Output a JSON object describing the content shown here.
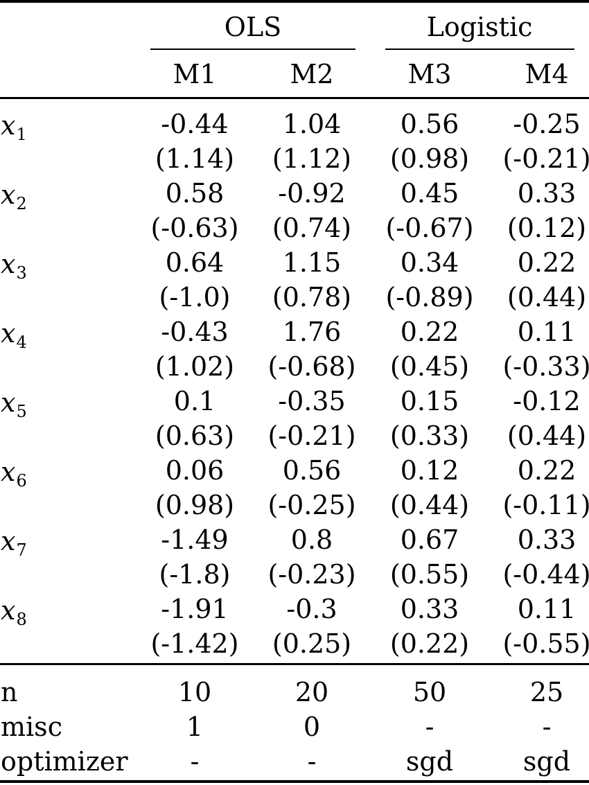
{
  "header": {
    "groups": [
      {
        "label": "OLS"
      },
      {
        "label": "Logistic"
      }
    ],
    "models": [
      "M1",
      "M2",
      "M3",
      "M4"
    ]
  },
  "rows": [
    {
      "base": "x",
      "sub": "1",
      "coefs": [
        "-0.44",
        "1.04",
        "0.56",
        "-0.25"
      ],
      "ses": [
        "(1.14)",
        "(1.12)",
        "(0.98)",
        "(-0.21)"
      ]
    },
    {
      "base": "x",
      "sub": "2",
      "coefs": [
        "0.58",
        "-0.92",
        "0.45",
        "0.33"
      ],
      "ses": [
        "(-0.63)",
        "(0.74)",
        "(-0.67)",
        "(0.12)"
      ]
    },
    {
      "base": "x",
      "sub": "3",
      "coefs": [
        "0.64",
        "1.15",
        "0.34",
        "0.22"
      ],
      "ses": [
        "(-1.0)",
        "(0.78)",
        "(-0.89)",
        "(0.44)"
      ]
    },
    {
      "base": "x",
      "sub": "4",
      "coefs": [
        "-0.43",
        "1.76",
        "0.22",
        "0.11"
      ],
      "ses": [
        "(1.02)",
        "(-0.68)",
        "(0.45)",
        "(-0.33)"
      ]
    },
    {
      "base": "x",
      "sub": "5",
      "coefs": [
        "0.1",
        "-0.35",
        "0.15",
        "-0.12"
      ],
      "ses": [
        "(0.63)",
        "(-0.21)",
        "(0.33)",
        "(0.44)"
      ]
    },
    {
      "base": "x",
      "sub": "6",
      "coefs": [
        "0.06",
        "0.56",
        "0.12",
        "0.22"
      ],
      "ses": [
        "(0.98)",
        "(-0.25)",
        "(0.44)",
        "(-0.11)"
      ]
    },
    {
      "base": "x",
      "sub": "7",
      "coefs": [
        "-1.49",
        "0.8",
        "0.67",
        "0.33"
      ],
      "ses": [
        "(-1.8)",
        "(-0.23)",
        "(0.55)",
        "(-0.44)"
      ]
    },
    {
      "base": "x",
      "sub": "8",
      "coefs": [
        "-1.91",
        "-0.3",
        "0.33",
        "0.11"
      ],
      "ses": [
        "(-1.42)",
        "(0.25)",
        "(0.22)",
        "(-0.55)"
      ]
    }
  ],
  "footer": [
    {
      "label": "n",
      "values": [
        "10",
        "20",
        "50",
        "25"
      ]
    },
    {
      "label": "misc",
      "values": [
        "1",
        "0",
        "-",
        "-"
      ]
    },
    {
      "label": "optimizer",
      "values": [
        "-",
        "-",
        "sgd",
        "sgd"
      ]
    }
  ]
}
